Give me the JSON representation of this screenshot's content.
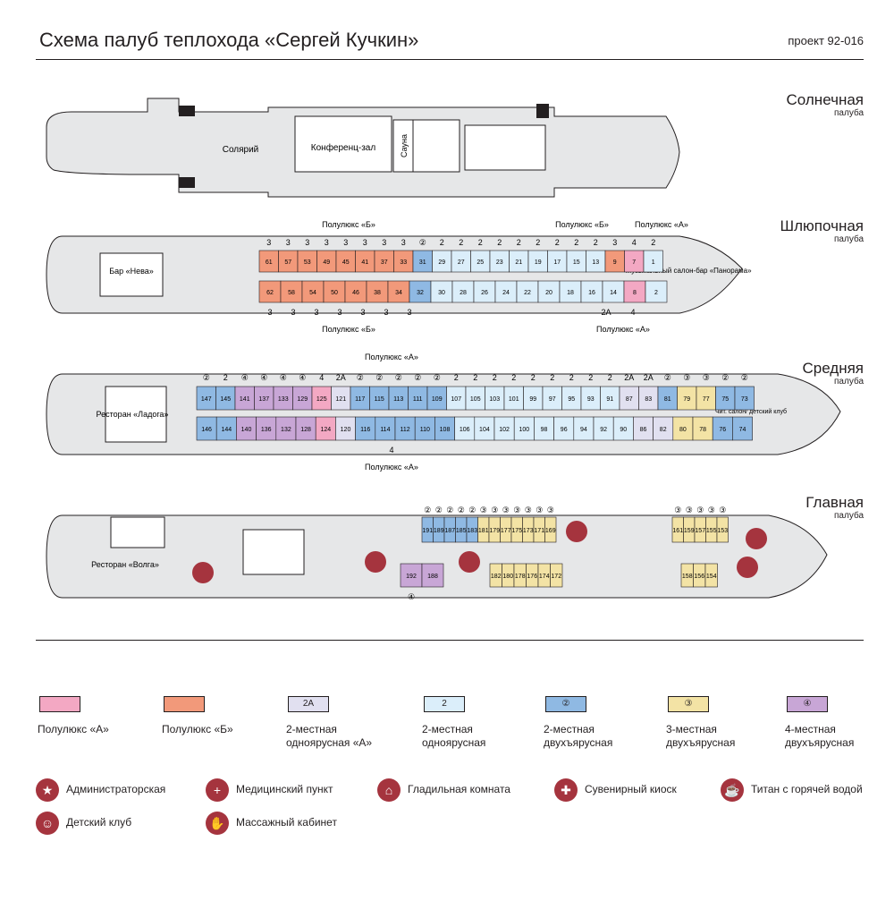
{
  "header": {
    "title": "Схема палуб теплохода «Сергей Кучкин»",
    "project": "проект 92-016"
  },
  "colors": {
    "lux_a": "#f3a8c3",
    "lux_b": "#f2997a",
    "two_a": "#e1e0f0",
    "two": "#dbeefa",
    "two_bunk": "#8fb9e3",
    "three": "#f3e3a5",
    "four": "#c8a6d6",
    "icon": "#a5343e",
    "line": "#231f20"
  },
  "decks": {
    "sun": {
      "name": "Солнечная",
      "sub": "палуба",
      "labels": {
        "solarium": "Солярий",
        "conf": "Конференц-зал",
        "sauna": "Сауна"
      }
    },
    "boat": {
      "name": "Шлюпочная",
      "sub": "палуба",
      "labels": {
        "bar": "Бар «Нева»",
        "lux_b_top": "Полулюкс «Б»",
        "lux_b_top2": "Полулюкс «Б»",
        "lux_a_top": "Полулюкс «А»",
        "lux_b_bottom": "Полулюкс «Б»",
        "lux_a_bottom": "Полулюкс «А»",
        "music_bar": "Музыкальный салон-бар «Панорама»"
      },
      "top_cabins": [
        "61",
        "57",
        "53",
        "49",
        "45",
        "41",
        "37",
        "33",
        "31",
        "29",
        "27",
        "25",
        "23",
        "21",
        "19",
        "17",
        "15",
        "13",
        "9",
        "7",
        "1"
      ],
      "top_caps": [
        "3",
        "3",
        "3",
        "3",
        "3",
        "3",
        "3",
        "3",
        "②",
        "2",
        "2",
        "2",
        "2",
        "2",
        "2",
        "2",
        "2",
        "2",
        "3",
        "4",
        "2"
      ],
      "bottom_cabins": [
        "62",
        "58",
        "54",
        "50",
        "46",
        "38",
        "34",
        "32",
        "30",
        "28",
        "26",
        "24",
        "22",
        "20",
        "18",
        "16",
        "14",
        "8",
        "2"
      ],
      "bottom_caps": [
        "3",
        "3",
        "3",
        "3",
        "3",
        "3",
        "3"
      ],
      "bottom_caps_right": [
        "2А",
        "4"
      ]
    },
    "middle": {
      "name": "Средняя",
      "sub": "палуба",
      "labels": {
        "restaurant": "Ресторан «Ладога»",
        "lux_a_top": "Полулюкс «А»",
        "lux_a_bottom": "Полулюкс «А»",
        "reading": "Чит. салон/ детский клуб"
      },
      "top_cabins": [
        "147",
        "145",
        "141",
        "137",
        "133",
        "129",
        "125",
        "121",
        "117",
        "115",
        "113",
        "111",
        "109",
        "107",
        "105",
        "103",
        "101",
        "99",
        "97",
        "95",
        "93",
        "91",
        "87",
        "83",
        "81",
        "79",
        "77",
        "75",
        "73"
      ],
      "top_caps": [
        "②",
        "2",
        "④",
        "④",
        "④",
        "④",
        "4",
        "2А",
        "②",
        "②",
        "②",
        "②",
        "②",
        "2",
        "2",
        "2",
        "2",
        "2",
        "2",
        "2",
        "2",
        "2",
        "2А",
        "2А",
        "②",
        "③",
        "③",
        "②",
        "②"
      ],
      "bottom_cabins": [
        "146",
        "144",
        "140",
        "136",
        "132",
        "128",
        "124",
        "120",
        "116",
        "114",
        "112",
        "110",
        "108",
        "106",
        "104",
        "102",
        "100",
        "98",
        "96",
        "94",
        "92",
        "90",
        "86",
        "82",
        "80",
        "78",
        "76",
        "74"
      ],
      "bottom_caps": [
        "4"
      ]
    },
    "main": {
      "name": "Главная",
      "sub": "палуба",
      "labels": {
        "restaurant": "Ресторан «Волга»"
      },
      "top_cabins": [
        "191",
        "189",
        "187",
        "185",
        "183",
        "181",
        "179",
        "177",
        "175",
        "173",
        "171",
        "169",
        "161",
        "159",
        "157",
        "155",
        "153"
      ],
      "top_caps": [
        "②",
        "②",
        "②",
        "②",
        "②",
        "③",
        "③",
        "③",
        "③",
        "③",
        "③",
        "③",
        "③",
        "③",
        "③",
        "③",
        "③"
      ],
      "bottom_cabins": [
        "192",
        "188",
        "182",
        "180",
        "178",
        "176",
        "174",
        "172",
        "158",
        "156",
        "154"
      ],
      "bottom_caps": [
        "④"
      ]
    }
  },
  "legend": [
    {
      "key": "lux_a",
      "box": "",
      "label": "Полулюкс «А»"
    },
    {
      "key": "lux_b",
      "box": "",
      "label": "Полулюкс «Б»"
    },
    {
      "key": "two_a",
      "box": "2А",
      "label": "2-местная одноярусная «А»"
    },
    {
      "key": "two",
      "box": "2",
      "label": "2-местная одноярусная"
    },
    {
      "key": "two_bunk",
      "box": "②",
      "label": "2-местная двухъярусная"
    },
    {
      "key": "three",
      "box": "③",
      "label": "3-местная двухъярусная"
    },
    {
      "key": "four",
      "box": "④",
      "label": "4-местная двухъярусная"
    }
  ],
  "icons": [
    {
      "name": "admin-icon",
      "glyph": "★",
      "label": "Администраторская"
    },
    {
      "name": "medical-icon",
      "glyph": "+",
      "label": "Медицинский пункт"
    },
    {
      "name": "iron-icon",
      "glyph": "⌂",
      "label": "Гладильная комната"
    },
    {
      "name": "gift-icon",
      "glyph": "✚",
      "label": "Сувенирный киоск"
    },
    {
      "name": "kettle-icon",
      "glyph": "☕",
      "label": "Титан с горячей водой"
    },
    {
      "name": "kids-icon",
      "glyph": "☺",
      "label": "Детский клуб"
    },
    {
      "name": "massage-icon",
      "glyph": "✋",
      "label": "Массажный кабинет"
    }
  ]
}
